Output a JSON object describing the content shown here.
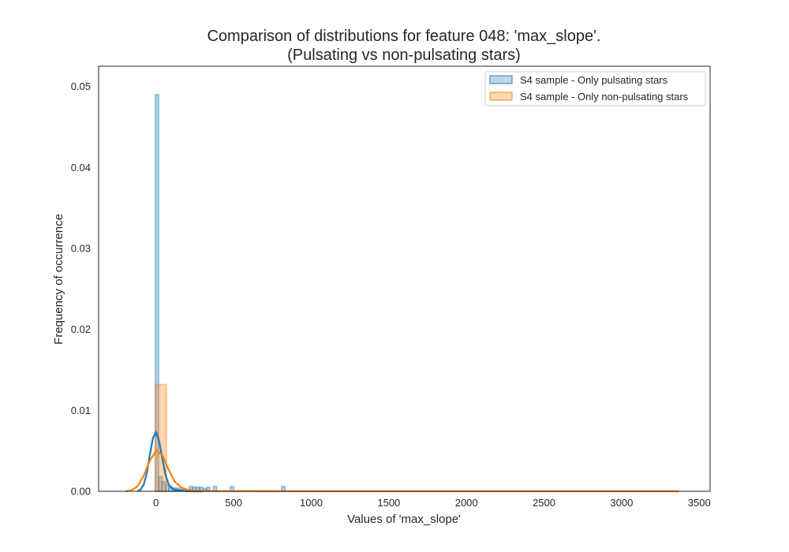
{
  "colors": {
    "pulsating": "#1f77b4",
    "non_pulsating": "#ff7f0e",
    "axes": "#262626",
    "background": "#ffffff"
  },
  "chart_data": {
    "type": "histogram",
    "title": "Comparison of distributions for feature 048: 'max_slope'.",
    "subtitle": "(Pulsating vs non-pulsating stars)",
    "xlabel": "Values of 'max_slope'",
    "ylabel": "Frequency of occurrence",
    "xlim": [
      -370,
      3570
    ],
    "ylim": [
      0,
      0.0525
    ],
    "xticks": [
      0,
      500,
      1000,
      1500,
      2000,
      2500,
      3000,
      3500
    ],
    "xtick_labels": [
      "0",
      "500",
      "1000",
      "1500",
      "2000",
      "2500",
      "3000",
      "3500"
    ],
    "yticks": [
      0.0,
      0.01,
      0.02,
      0.03,
      0.04,
      0.05
    ],
    "ytick_labels": [
      "0.00",
      "0.01",
      "0.02",
      "0.03",
      "0.04",
      "0.05"
    ],
    "grid": false,
    "legend_position": "top-right",
    "series": [
      {
        "name": "S4 sample - Only pulsating stars",
        "color": "#1f77b4",
        "hist": [
          {
            "x0": -5,
            "x1": 17,
            "y": 0.049
          },
          {
            "x0": 17,
            "x1": 39,
            "y": 0.0018
          },
          {
            "x0": 39,
            "x1": 61,
            "y": 0.0012
          },
          {
            "x0": 61,
            "x1": 83,
            "y": 0.0008
          },
          {
            "x0": 83,
            "x1": 105,
            "y": 0.0006
          },
          {
            "x0": 105,
            "x1": 127,
            "y": 0.0004
          },
          {
            "x0": 127,
            "x1": 149,
            "y": 0.0004
          },
          {
            "x0": 149,
            "x1": 171,
            "y": 0.0003
          },
          {
            "x0": 171,
            "x1": 193,
            "y": 0.0003
          },
          {
            "x0": 193,
            "x1": 215,
            "y": 0.0002
          },
          {
            "x0": 215,
            "x1": 237,
            "y": 0.0006
          },
          {
            "x0": 237,
            "x1": 259,
            "y": 0.0005
          },
          {
            "x0": 259,
            "x1": 281,
            "y": 0.0005
          },
          {
            "x0": 281,
            "x1": 303,
            "y": 0.0005
          },
          {
            "x0": 303,
            "x1": 325,
            "y": 0.0003
          },
          {
            "x0": 325,
            "x1": 347,
            "y": 0.0005
          },
          {
            "x0": 369,
            "x1": 391,
            "y": 0.0006
          },
          {
            "x0": 479,
            "x1": 501,
            "y": 0.0006
          },
          {
            "x0": 809,
            "x1": 831,
            "y": 0.0006
          }
        ],
        "kde": {
          "x": [
            -120,
            -100,
            -80,
            -60,
            -40,
            -20,
            0,
            20,
            40,
            60,
            80,
            100,
            120,
            150,
            200,
            300
          ],
          "y": [
            0.0,
            0.0002,
            0.0008,
            0.0022,
            0.0045,
            0.0066,
            0.0073,
            0.0062,
            0.0041,
            0.0021,
            0.0009,
            0.0004,
            0.0002,
            0.0001,
            0.0,
            0.0
          ]
        }
      },
      {
        "name": "S4 sample - Only non-pulsating stars",
        "color": "#ff7f0e",
        "hist": [
          {
            "x0": -5,
            "x1": 67,
            "y": 0.0132
          }
        ],
        "kde": {
          "x": [
            -200,
            -160,
            -120,
            -80,
            -40,
            0,
            40,
            80,
            120,
            160,
            200,
            240,
            300,
            400,
            600,
            1000,
            2000,
            3000,
            3370
          ],
          "y": [
            0.0,
            0.0001,
            0.0006,
            0.0019,
            0.0038,
            0.005,
            0.0045,
            0.0027,
            0.0012,
            0.0005,
            0.0002,
            0.0001,
            5e-05,
            2e-05,
            1e-05,
            0.0,
            0.0,
            0.0,
            0.0
          ]
        }
      }
    ]
  }
}
